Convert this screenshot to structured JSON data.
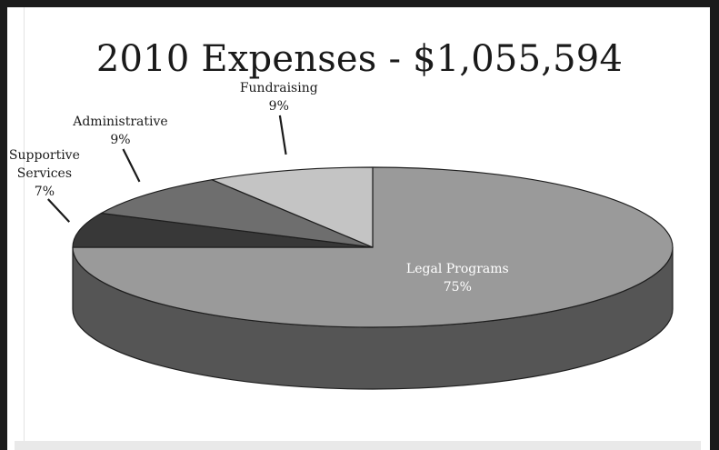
{
  "chart_data": {
    "type": "pie",
    "title": "2010 Expenses - $1,055,594",
    "categories": [
      "Legal Programs",
      "Supportive Services",
      "Administrative",
      "Fundraising"
    ],
    "values": [
      75,
      7,
      9,
      9
    ],
    "value_suffix": "%",
    "label_lines": [
      [
        "Legal Programs",
        "75%"
      ],
      [
        "Supportive",
        "Services",
        "7%"
      ],
      [
        "Administrative",
        "9%"
      ],
      [
        "Fundraising",
        "9%"
      ]
    ],
    "colors": {
      "Legal Programs": "#9a9a9a",
      "Supportive Services": "#383838",
      "Administrative": "#6e6e6e",
      "Fundraising": "#c4c4c4"
    },
    "style": "3d-pie",
    "legend": "none"
  }
}
